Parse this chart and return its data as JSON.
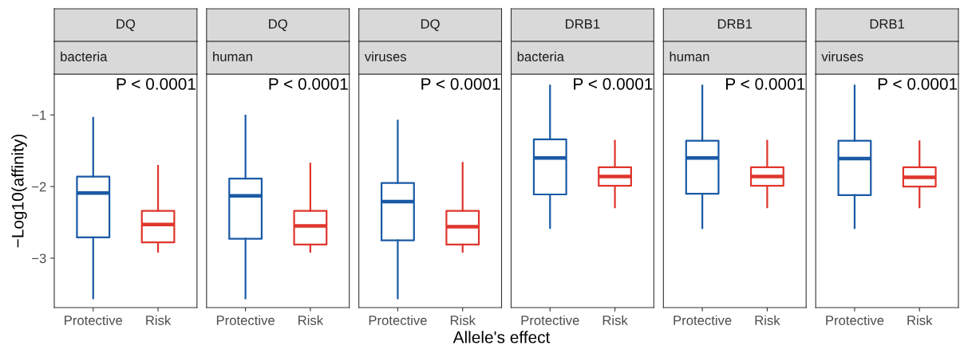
{
  "chart_data": [
    {
      "type": "box",
      "title": "DQ",
      "subtitle": "bacteria",
      "ylabel": "−Log10(affinity)",
      "categories": [
        "Protective",
        "Risk"
      ],
      "colors": [
        "#1a5aa6",
        "#e0362c"
      ],
      "ylim": [
        -3.69,
        -0.43
      ],
      "yticks": [
        {
          "value": -3,
          "label": "−3"
        },
        {
          "value": -2,
          "label": "−2"
        },
        {
          "value": -1,
          "label": "−1"
        }
      ],
      "grid": false,
      "annotations": [
        "P < 0.0001"
      ],
      "boxes": [
        {
          "low": -3.56,
          "q1": -2.71,
          "median": -2.09,
          "q3": -1.86,
          "high": -1.04
        },
        {
          "low": -2.91,
          "q1": -2.78,
          "median": -2.53,
          "q3": -2.34,
          "high": -1.71
        }
      ]
    },
    {
      "type": "box",
      "title": "DQ",
      "subtitle": "human",
      "categories": [
        "Protective",
        "Risk"
      ],
      "colors": [
        "#1a5aa6",
        "#e0362c"
      ],
      "ylim": [
        -3.69,
        -0.43
      ],
      "tick_labels": "x",
      "grid": false,
      "annotations": [
        "P < 0.0001"
      ],
      "boxes": [
        {
          "low": -3.56,
          "q1": -2.73,
          "median": -2.13,
          "q3": -1.89,
          "high": -1.01
        },
        {
          "low": -2.91,
          "q1": -2.81,
          "median": -2.55,
          "q3": -2.34,
          "high": -1.68
        }
      ]
    },
    {
      "type": "box",
      "title": "DQ",
      "subtitle": "viruses",
      "xlabel": "Allele's effect",
      "categories": [
        "Protective",
        "Risk"
      ],
      "colors": [
        "#1a5aa6",
        "#e0362c"
      ],
      "ylim": [
        -3.69,
        -0.43
      ],
      "tick_labels": "x",
      "grid": false,
      "annotations": [
        "P < 0.0001"
      ],
      "boxes": [
        {
          "low": -3.56,
          "q1": -2.75,
          "median": -2.21,
          "q3": -1.95,
          "high": -1.08
        },
        {
          "low": -2.91,
          "q1": -2.81,
          "median": -2.56,
          "q3": -2.34,
          "high": -1.67
        }
      ]
    },
    {
      "type": "box",
      "title": "DRB1",
      "subtitle": "bacteria",
      "categories": [
        "Protective",
        "Risk"
      ],
      "colors": [
        "#1a5aa6",
        "#e0362c"
      ],
      "ylim": [
        -3.69,
        -0.43
      ],
      "tick_labels": "x",
      "grid": false,
      "annotations": [
        "P < 0.0001"
      ],
      "boxes": [
        {
          "low": -2.58,
          "q1": -2.11,
          "median": -1.6,
          "q3": -1.34,
          "high": -0.59
        },
        {
          "low": -2.29,
          "q1": -1.99,
          "median": -1.86,
          "q3": -1.73,
          "high": -1.36
        }
      ]
    },
    {
      "type": "box",
      "title": "DRB1",
      "subtitle": "human",
      "categories": [
        "Protective",
        "Risk"
      ],
      "colors": [
        "#1a5aa6",
        "#e0362c"
      ],
      "ylim": [
        -3.69,
        -0.43
      ],
      "tick_labels": "x",
      "grid": false,
      "annotations": [
        "P < 0.0001"
      ],
      "boxes": [
        {
          "low": -2.58,
          "q1": -2.1,
          "median": -1.6,
          "q3": -1.36,
          "high": -0.59
        },
        {
          "low": -2.29,
          "q1": -1.99,
          "median": -1.86,
          "q3": -1.73,
          "high": -1.36
        }
      ]
    },
    {
      "type": "box",
      "title": "DRB1",
      "subtitle": "viruses",
      "categories": [
        "Protective",
        "Risk"
      ],
      "colors": [
        "#1a5aa6",
        "#e0362c"
      ],
      "ylim": [
        -3.69,
        -0.43
      ],
      "tick_labels": "x",
      "grid": false,
      "annotations": [
        "P < 0.0001"
      ],
      "boxes": [
        {
          "low": -2.58,
          "q1": -2.12,
          "median": -1.61,
          "q3": -1.36,
          "high": -0.59
        },
        {
          "low": -2.29,
          "q1": -2.0,
          "median": -1.87,
          "q3": -1.73,
          "high": -1.37
        }
      ]
    }
  ]
}
